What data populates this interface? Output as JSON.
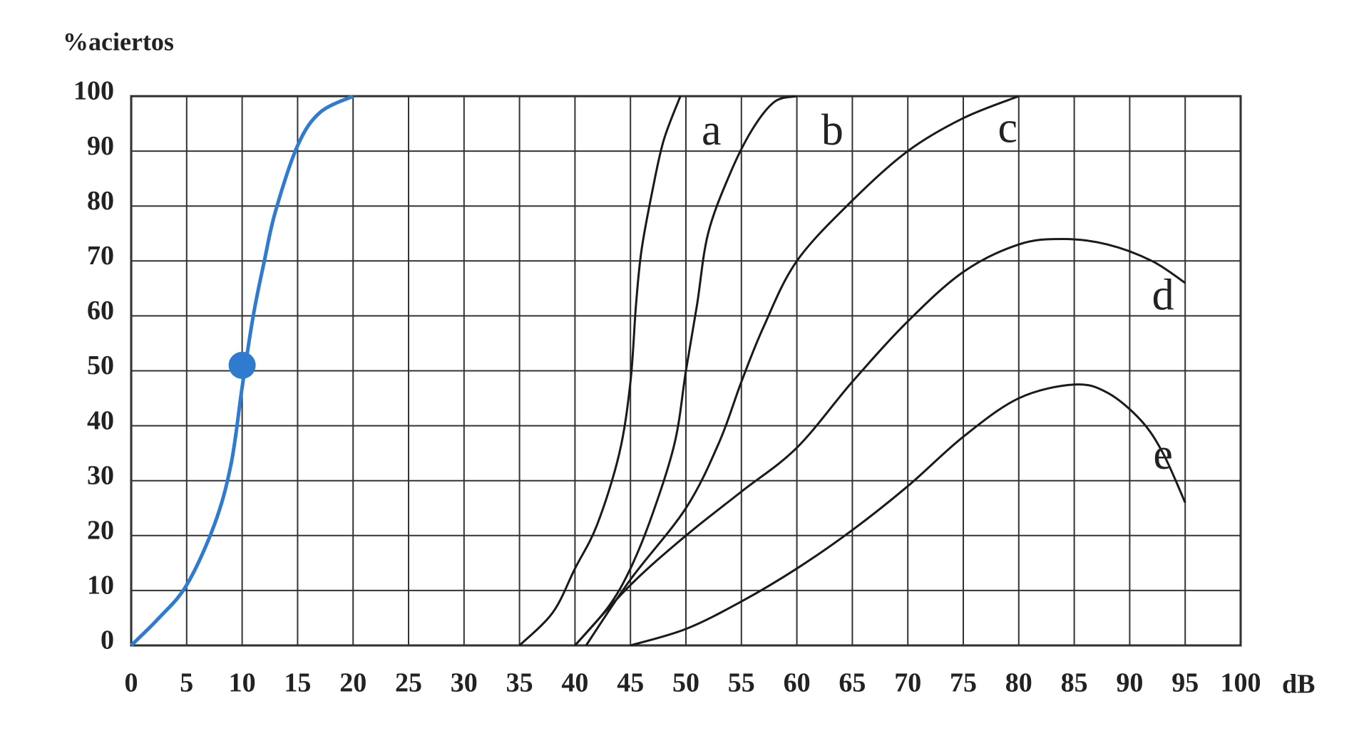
{
  "chart_data": {
    "type": "line",
    "y_label": "%aciertos",
    "x_label": "dB",
    "xlim": [
      0,
      100
    ],
    "ylim": [
      0,
      100
    ],
    "xticks": [
      0,
      5,
      10,
      15,
      20,
      25,
      30,
      35,
      40,
      45,
      50,
      55,
      60,
      65,
      70,
      75,
      80,
      85,
      90,
      95,
      100
    ],
    "yticks": [
      0,
      10,
      20,
      30,
      40,
      50,
      60,
      70,
      80,
      90,
      100
    ],
    "grid": true,
    "series": [
      {
        "color": "#2f7bcf",
        "x": [
          0,
          2.5,
          5,
          7.5,
          9,
          10,
          11,
          12,
          13,
          15,
          17,
          20
        ],
        "values": [
          0,
          5,
          11,
          22,
          33,
          47,
          60,
          70,
          79,
          91,
          97,
          100
        ]
      },
      {
        "name": "a",
        "color": "#1a1a1a",
        "x": [
          35,
          38,
          40,
          42,
          44,
          45,
          45.5,
          46,
          47,
          48,
          49.5
        ],
        "values": [
          0,
          6,
          14,
          22,
          35,
          48,
          62,
          72,
          83,
          92,
          100
        ]
      },
      {
        "name": "b",
        "color": "#1a1a1a",
        "x": [
          40,
          43,
          45,
          47,
          49,
          50,
          51,
          52,
          54,
          56,
          58,
          60
        ],
        "values": [
          0,
          7,
          14,
          24,
          37,
          50,
          62,
          75,
          86,
          94,
          99,
          100
        ]
      },
      {
        "name": "c",
        "color": "#1a1a1a",
        "x": [
          41,
          45,
          50,
          53,
          55,
          57,
          60,
          65,
          70,
          75,
          80
        ],
        "values": [
          0,
          12,
          25,
          37,
          48,
          58,
          70,
          81,
          90,
          96,
          100
        ]
      },
      {
        "name": "d",
        "color": "#1a1a1a",
        "x": [
          40,
          45,
          50,
          55,
          60,
          65,
          70,
          75,
          80,
          84,
          88,
          92,
          95
        ],
        "values": [
          0,
          11,
          20,
          28,
          36,
          48,
          59,
          68,
          73,
          74,
          73,
          70,
          66
        ]
      },
      {
        "name": "e",
        "color": "#1a1a1a",
        "x": [
          45,
          50,
          55,
          60,
          65,
          70,
          75,
          80,
          85,
          88,
          91,
          93,
          95
        ],
        "values": [
          0,
          3,
          8,
          14,
          21,
          29,
          38,
          45,
          47.5,
          46,
          41,
          35,
          26
        ]
      }
    ],
    "highlight": {
      "x": 10,
      "y": 51,
      "color": "#2f7bcf"
    }
  }
}
